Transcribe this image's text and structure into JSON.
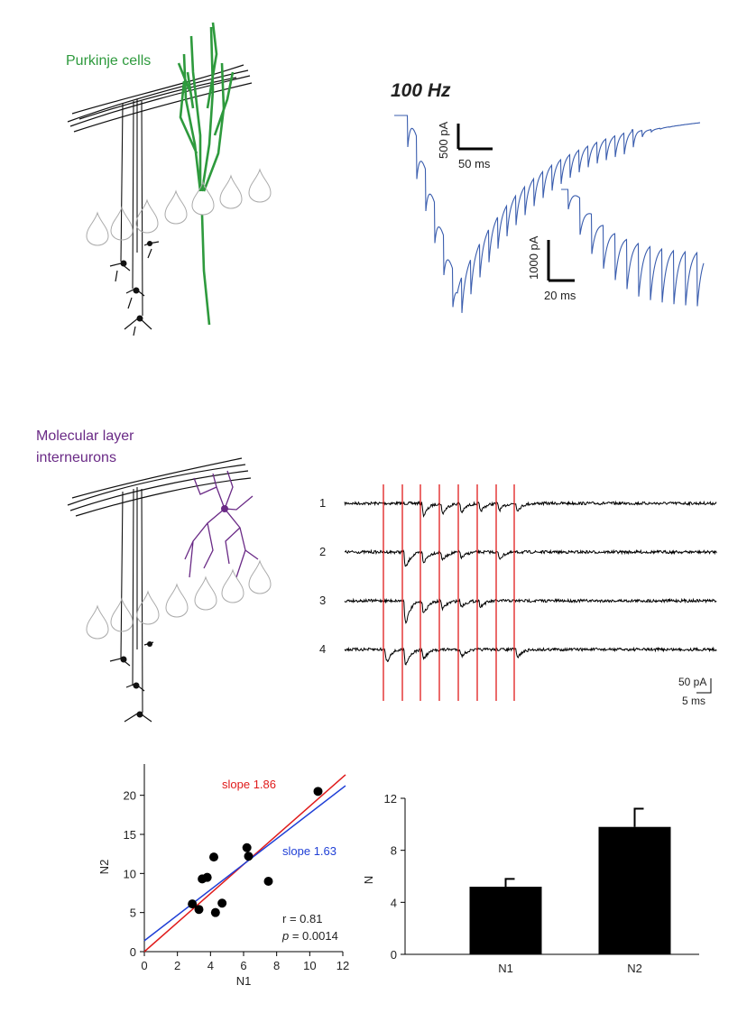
{
  "labels": {
    "purkinje": "Purkinje cells",
    "frequency": "100 Hz",
    "scale_a_y": "500 pA",
    "scale_a_x": "50 ms",
    "scale_b_y": "1000 pA",
    "scale_b_x": "20 ms",
    "mli": [
      "Molecular layer",
      "interneurons"
    ],
    "traces": [
      "1",
      "2",
      "3",
      "4"
    ],
    "scale_c_y": "50 pA",
    "scale_c_x": "5 ms"
  },
  "chart_data": [
    {
      "type": "scatter",
      "x_label": "N1",
      "y_label": "N2",
      "x": [
        2.9,
        3.3,
        3.5,
        3.8,
        4.2,
        4.3,
        4.7,
        6.2,
        6.3,
        7.5,
        10.5
      ],
      "values": [
        6.1,
        5.4,
        9.3,
        9.5,
        12.1,
        5.0,
        6.2,
        13.3,
        12.2,
        9.0,
        20.5
      ],
      "color": "#000000",
      "fit_lines": [
        {
          "name": "slope 1.86",
          "slope": 1.86,
          "intercept": 0,
          "color": "#e01b1b"
        },
        {
          "name": "slope 1.63",
          "slope": 1.63,
          "intercept": 1.4,
          "color": "#1f3fd6"
        }
      ],
      "annotations": {
        "r": "r = 0.81",
        "p": [
          "p",
          " = 0.0014"
        ]
      },
      "xlim": [
        0,
        12
      ],
      "xticks": [
        0,
        2,
        4,
        6,
        8,
        10,
        12
      ],
      "ylim": [
        0,
        24
      ],
      "yticks": [
        0,
        5,
        10,
        15,
        20
      ]
    },
    {
      "type": "bar",
      "y_label": "N",
      "categories": [
        "N1",
        "N2"
      ],
      "values": [
        5.2,
        9.8
      ],
      "errors": [
        0.6,
        1.4
      ],
      "color": "#000000",
      "ylim": [
        0,
        12
      ],
      "yticks": [
        0,
        4,
        8,
        12
      ]
    }
  ]
}
